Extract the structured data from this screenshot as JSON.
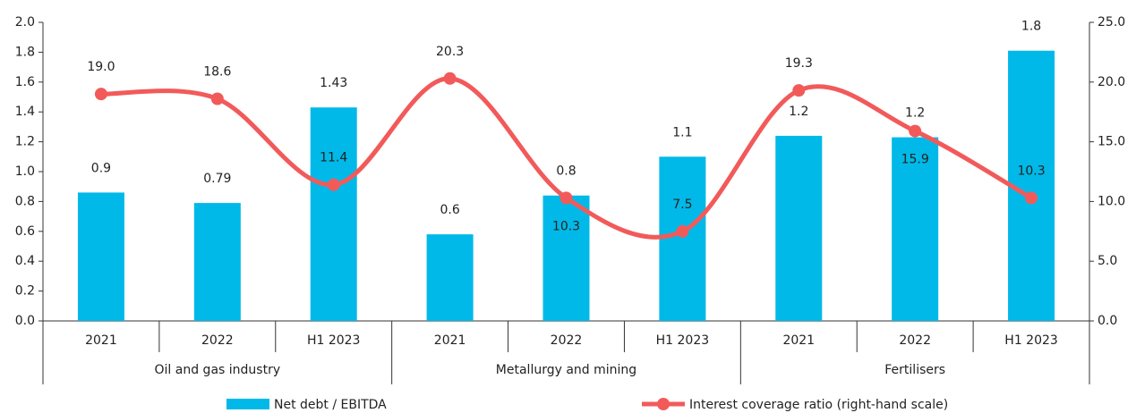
{
  "chart_data": {
    "type": "bar_line",
    "categories": [
      "2021",
      "2022",
      "H1 2023",
      "2021",
      "2022",
      "H1 2023",
      "2021",
      "2022",
      "H1 2023"
    ],
    "groups": [
      "Oil and gas industry",
      "Metallurgy and mining",
      "Fertilisers"
    ],
    "series": [
      {
        "name": "Net debt / EBITDA",
        "type": "bar",
        "color": "#00b9e8",
        "values": [
          0.86,
          0.79,
          1.43,
          0.58,
          0.84,
          1.1,
          1.24,
          1.23,
          1.81
        ],
        "value_labels": [
          "0.9",
          "0.79",
          "1.43",
          "0.6",
          "0.8",
          "1.1",
          "1.2",
          "1.2",
          "1.8"
        ]
      },
      {
        "name": "Interest coverage ratio (right-hand scale)",
        "type": "line",
        "axis": "y2",
        "color": "#f25a5a",
        "values": [
          19.0,
          18.6,
          11.4,
          20.3,
          10.3,
          7.5,
          19.3,
          15.9,
          10.3
        ],
        "value_labels": [
          "19.0",
          "18.6",
          "11.4",
          "20.3",
          "10.3",
          "7.5",
          "19.3",
          "15.9",
          "10.3"
        ]
      }
    ],
    "ylim": [
      0,
      2
    ],
    "yticks": [
      {
        "value": 0,
        "label": "0.0"
      },
      0.2,
      0.4,
      0.6,
      0.8,
      {
        "value": 1,
        "label": "1.0"
      },
      1.2,
      1.4,
      1.6,
      1.8,
      {
        "value": 2,
        "label": "2.0"
      }
    ],
    "y2lim": [
      0,
      25
    ],
    "y2ticks": [
      {
        "value": 0,
        "label": "0.0"
      },
      {
        "value": 5,
        "label": "5.0"
      },
      {
        "value": 10,
        "label": "10.0"
      },
      {
        "value": 15,
        "label": "15.0"
      },
      {
        "value": 20,
        "label": "20.0"
      },
      {
        "value": 25,
        "label": "25.0"
      }
    ],
    "legend": "bottom"
  }
}
